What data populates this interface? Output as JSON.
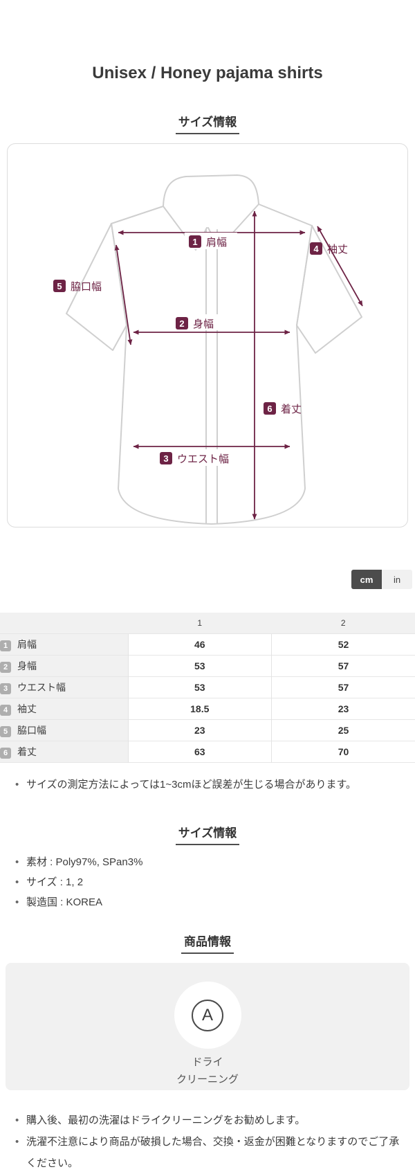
{
  "page": {
    "title": "Unisex / Honey pajama shirts"
  },
  "sections": {
    "size_diagram_header": "サイズ情報",
    "size_info_header": "サイズ情報",
    "product_info_header": "商品情報"
  },
  "unit_toggle": {
    "cm_label": "cm",
    "in_label": "in",
    "active": "cm"
  },
  "diagram": {
    "measurements": [
      {
        "num": "1",
        "label": "肩幅"
      },
      {
        "num": "2",
        "label": "身幅"
      },
      {
        "num": "3",
        "label": "ウエスト幅"
      },
      {
        "num": "4",
        "label": "袖丈"
      },
      {
        "num": "5",
        "label": "脇口幅"
      },
      {
        "num": "6",
        "label": "着丈"
      }
    ]
  },
  "size_table": {
    "columns": [
      "1",
      "2"
    ],
    "rows": [
      {
        "num": "1",
        "label": "肩幅",
        "values": [
          "46",
          "52"
        ]
      },
      {
        "num": "2",
        "label": "身幅",
        "values": [
          "53",
          "57"
        ]
      },
      {
        "num": "3",
        "label": "ウエスト幅",
        "values": [
          "53",
          "57"
        ]
      },
      {
        "num": "4",
        "label": "袖丈",
        "values": [
          "18.5",
          "23"
        ]
      },
      {
        "num": "5",
        "label": "脇口幅",
        "values": [
          "23",
          "25"
        ]
      },
      {
        "num": "6",
        "label": "着丈",
        "values": [
          "63",
          "70"
        ]
      }
    ]
  },
  "size_note_items": [
    "サイズの測定方法によっては1~3cmほど誤差が生じる場合があります。"
  ],
  "size_info_items": [
    "素材 : Poly97%,  SPan3%",
    "サイズ : 1, 2",
    "製造国 : KOREA"
  ],
  "care": {
    "symbol": "A",
    "label_line1": "ドライ",
    "label_line2": "クリーニング"
  },
  "care_note_items": [
    "購入後、最初の洗濯はドライクリーニングをお勧めします。",
    "洗濯不注意により商品が破損した場合、交換・返金が困難となりますのでご了承ください。"
  ],
  "colors": {
    "accent": "#6d2345",
    "outline": "#cfcfcf",
    "badge_gray": "#aeaeae",
    "panel_bg": "#f1f1f1",
    "toggle_active_bg": "#4c4c4c"
  }
}
